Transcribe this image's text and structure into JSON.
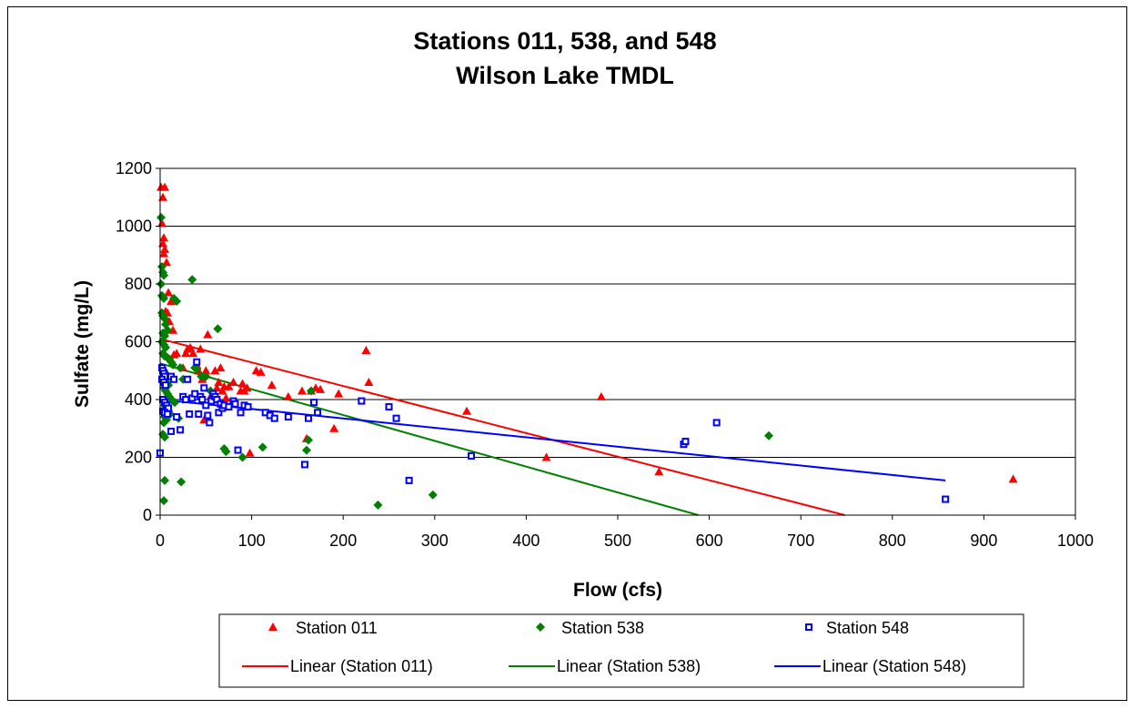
{
  "chart_data": {
    "type": "scatter",
    "title": [
      "Stations 011, 538, and 548",
      "Wilson Lake TMDL"
    ],
    "xlabel": "Flow (cfs)",
    "ylabel": "Sulfate (mg/L)",
    "xlim": [
      0,
      1000
    ],
    "ylim": [
      0,
      1200
    ],
    "xticks": [
      "0",
      "100",
      "200",
      "300",
      "400",
      "500",
      "600",
      "700",
      "800",
      "900",
      "1000"
    ],
    "yticks": [
      "0",
      "200",
      "400",
      "600",
      "800",
      "1000",
      "1200"
    ],
    "grid": "horizontal",
    "legend_position": "bottom",
    "series": [
      {
        "name": "Station 011",
        "marker": "triangle",
        "color": "#ff0000",
        "points": [
          [
            1,
            1135
          ],
          [
            5,
            1135
          ],
          [
            3,
            1100
          ],
          [
            2,
            1010
          ],
          [
            4,
            960
          ],
          [
            3,
            940
          ],
          [
            5,
            920
          ],
          [
            4,
            905
          ],
          [
            7,
            875
          ],
          [
            9,
            770
          ],
          [
            12,
            740
          ],
          [
            10,
            670
          ],
          [
            14,
            640
          ],
          [
            6,
            705
          ],
          [
            8,
            700
          ],
          [
            18,
            560
          ],
          [
            15,
            555
          ],
          [
            25,
            510
          ],
          [
            28,
            560
          ],
          [
            30,
            575
          ],
          [
            33,
            580
          ],
          [
            36,
            560
          ],
          [
            40,
            520
          ],
          [
            42,
            500
          ],
          [
            44,
            575
          ],
          [
            46,
            470
          ],
          [
            48,
            330
          ],
          [
            50,
            500
          ],
          [
            52,
            625
          ],
          [
            55,
            410
          ],
          [
            58,
            410
          ],
          [
            60,
            500
          ],
          [
            62,
            440
          ],
          [
            64,
            460
          ],
          [
            66,
            510
          ],
          [
            68,
            430
          ],
          [
            70,
            445
          ],
          [
            72,
            405
          ],
          [
            75,
            445
          ],
          [
            80,
            460
          ],
          [
            88,
            430
          ],
          [
            90,
            455
          ],
          [
            92,
            430
          ],
          [
            95,
            440
          ],
          [
            98,
            215
          ],
          [
            105,
            500
          ],
          [
            110,
            495
          ],
          [
            122,
            450
          ],
          [
            140,
            410
          ],
          [
            155,
            430
          ],
          [
            160,
            265
          ],
          [
            165,
            430
          ],
          [
            170,
            440
          ],
          [
            175,
            435
          ],
          [
            190,
            300
          ],
          [
            195,
            420
          ],
          [
            225,
            570
          ],
          [
            228,
            460
          ],
          [
            335,
            360
          ],
          [
            422,
            200
          ],
          [
            482,
            410
          ],
          [
            545,
            150
          ],
          [
            932,
            125
          ]
        ]
      },
      {
        "name": "Station 538",
        "marker": "diamond",
        "color": "#008000",
        "points": [
          [
            1,
            1030
          ],
          [
            2,
            860
          ],
          [
            3,
            840
          ],
          [
            4,
            830
          ],
          [
            1,
            800
          ],
          [
            2,
            760
          ],
          [
            3,
            755
          ],
          [
            4,
            750
          ],
          [
            2,
            700
          ],
          [
            3,
            690
          ],
          [
            5,
            680
          ],
          [
            6,
            660
          ],
          [
            8,
            640
          ],
          [
            3,
            630
          ],
          [
            5,
            620
          ],
          [
            2,
            600
          ],
          [
            4,
            590
          ],
          [
            6,
            580
          ],
          [
            3,
            560
          ],
          [
            5,
            550
          ],
          [
            8,
            545
          ],
          [
            10,
            540
          ],
          [
            12,
            530
          ],
          [
            14,
            520
          ],
          [
            4,
            500
          ],
          [
            6,
            490
          ],
          [
            8,
            480
          ],
          [
            5,
            470
          ],
          [
            7,
            460
          ],
          [
            9,
            450
          ],
          [
            4,
            440
          ],
          [
            6,
            430
          ],
          [
            8,
            420
          ],
          [
            10,
            410
          ],
          [
            12,
            400
          ],
          [
            14,
            395
          ],
          [
            16,
            390
          ],
          [
            5,
            380
          ],
          [
            7,
            370
          ],
          [
            9,
            360
          ],
          [
            11,
            350
          ],
          [
            5,
            340
          ],
          [
            7,
            330
          ],
          [
            4,
            320
          ],
          [
            3,
            280
          ],
          [
            5,
            270
          ],
          [
            15,
            750
          ],
          [
            18,
            740
          ],
          [
            22,
            510
          ],
          [
            25,
            470
          ],
          [
            20,
            335
          ],
          [
            35,
            815
          ],
          [
            38,
            510
          ],
          [
            40,
            505
          ],
          [
            45,
            480
          ],
          [
            50,
            480
          ],
          [
            55,
            430
          ],
          [
            63,
            645
          ],
          [
            70,
            230
          ],
          [
            72,
            220
          ],
          [
            90,
            200
          ],
          [
            112,
            235
          ],
          [
            160,
            225
          ],
          [
            162,
            260
          ],
          [
            165,
            430
          ],
          [
            5,
            120
          ],
          [
            23,
            115
          ],
          [
            4,
            50
          ],
          [
            238,
            35
          ],
          [
            298,
            70
          ],
          [
            665,
            275
          ]
        ]
      },
      {
        "name": "Station 548",
        "marker": "square",
        "color": "#0000ff",
        "points": [
          [
            0,
            215
          ],
          [
            2,
            510
          ],
          [
            3,
            500
          ],
          [
            4,
            490
          ],
          [
            5,
            480
          ],
          [
            2,
            470
          ],
          [
            4,
            460
          ],
          [
            6,
            450
          ],
          [
            3,
            400
          ],
          [
            5,
            390
          ],
          [
            7,
            380
          ],
          [
            9,
            370
          ],
          [
            3,
            360
          ],
          [
            5,
            355
          ],
          [
            8,
            350
          ],
          [
            12,
            480
          ],
          [
            15,
            470
          ],
          [
            12,
            290
          ],
          [
            18,
            340
          ],
          [
            22,
            295
          ],
          [
            25,
            410
          ],
          [
            28,
            400
          ],
          [
            30,
            470
          ],
          [
            32,
            350
          ],
          [
            35,
            405
          ],
          [
            38,
            420
          ],
          [
            40,
            530
          ],
          [
            42,
            350
          ],
          [
            44,
            410
          ],
          [
            46,
            400
          ],
          [
            48,
            440
          ],
          [
            50,
            380
          ],
          [
            52,
            345
          ],
          [
            54,
            320
          ],
          [
            56,
            395
          ],
          [
            58,
            420
          ],
          [
            60,
            410
          ],
          [
            62,
            400
          ],
          [
            64,
            355
          ],
          [
            66,
            385
          ],
          [
            68,
            370
          ],
          [
            70,
            380
          ],
          [
            75,
            375
          ],
          [
            80,
            395
          ],
          [
            82,
            385
          ],
          [
            85,
            225
          ],
          [
            88,
            355
          ],
          [
            92,
            380
          ],
          [
            96,
            375
          ],
          [
            115,
            355
          ],
          [
            120,
            345
          ],
          [
            125,
            335
          ],
          [
            140,
            340
          ],
          [
            158,
            175
          ],
          [
            162,
            335
          ],
          [
            168,
            390
          ],
          [
            172,
            355
          ],
          [
            220,
            395
          ],
          [
            250,
            375
          ],
          [
            258,
            335
          ],
          [
            272,
            120
          ],
          [
            340,
            205
          ],
          [
            572,
            245
          ],
          [
            574,
            255
          ],
          [
            608,
            320
          ],
          [
            858,
            55
          ]
        ]
      }
    ],
    "trendlines": [
      {
        "name": "Linear (Station 011)",
        "color": "#ff0000",
        "x": [
          0,
          748
        ],
        "y": [
          610,
          0
        ]
      },
      {
        "name": "Linear (Station 538)",
        "color": "#008000",
        "x": [
          0,
          588
        ],
        "y": [
          525,
          0
        ]
      },
      {
        "name": "Linear (Station 548)",
        "color": "#0000ff",
        "x": [
          0,
          858
        ],
        "y": [
          400,
          120
        ]
      }
    ]
  }
}
